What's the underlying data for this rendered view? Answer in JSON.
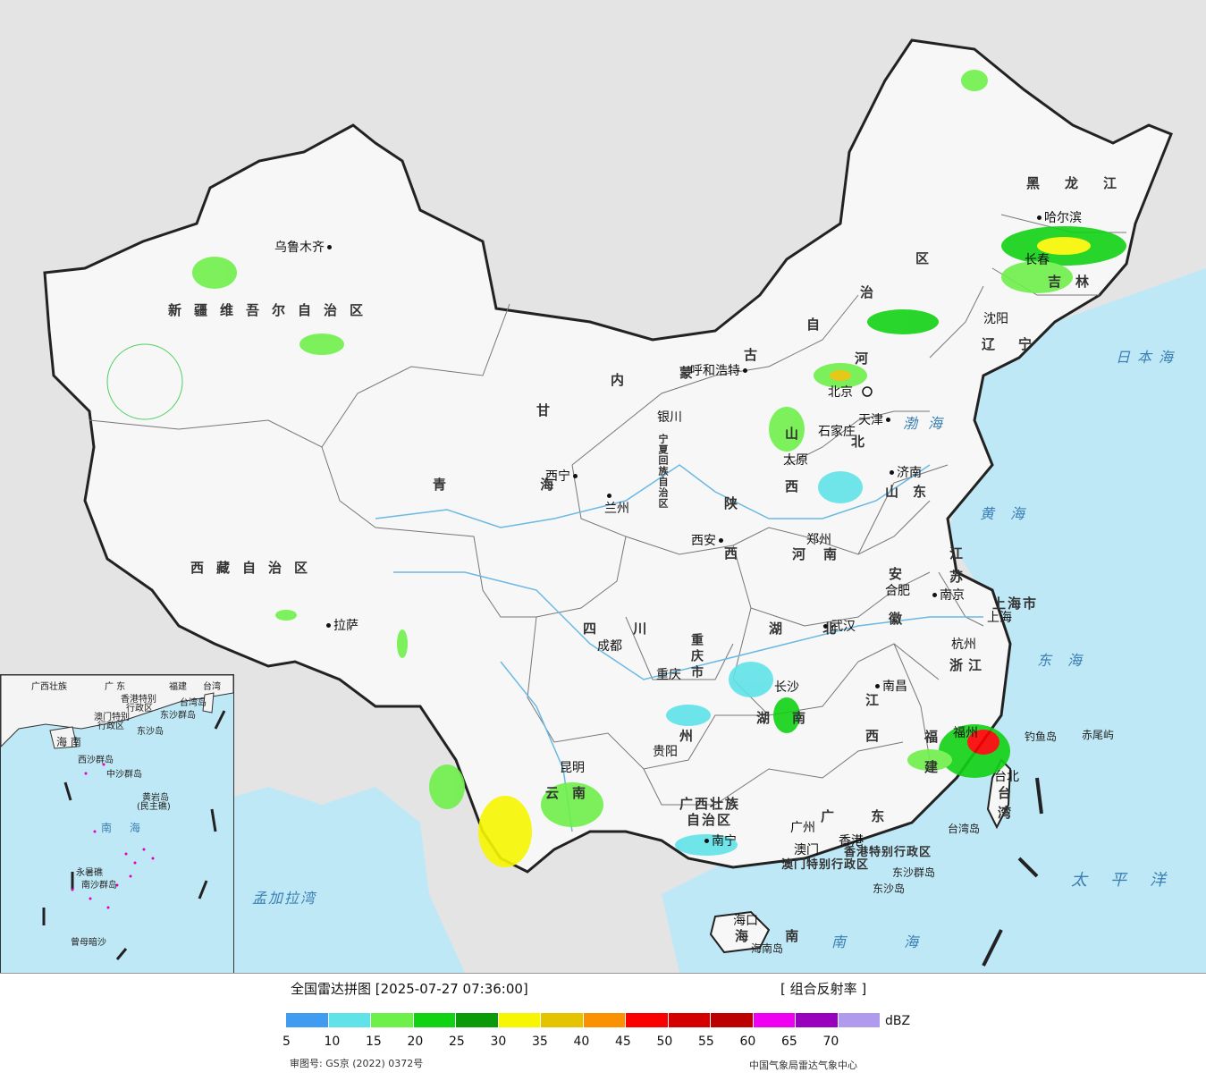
{
  "map": {
    "provinces": [
      {
        "id": "xinjiang",
        "label": "新疆维吾尔自治区"
      },
      {
        "id": "tibet",
        "label": "西藏自治区"
      },
      {
        "id": "qinghai",
        "label": "青 海"
      },
      {
        "id": "gansu",
        "label": "甘"
      },
      {
        "id": "inner_mongolia_1",
        "label": "内"
      },
      {
        "id": "inner_mongolia_2",
        "label": "蒙"
      },
      {
        "id": "inner_mongolia_3",
        "label": "古"
      },
      {
        "id": "inner_mongolia_4",
        "label": "自"
      },
      {
        "id": "inner_mongolia_5",
        "label": "治"
      },
      {
        "id": "inner_mongolia_6",
        "label": "区"
      },
      {
        "id": "heilongjiang",
        "label": "黑龙江"
      },
      {
        "id": "jilin",
        "label": "吉林"
      },
      {
        "id": "liaoning",
        "label": "辽宁"
      },
      {
        "id": "hebei_1",
        "label": "河"
      },
      {
        "id": "hebei_2",
        "label": "北"
      },
      {
        "id": "shanxi_1",
        "label": "山"
      },
      {
        "id": "shanxi_2",
        "label": "西"
      },
      {
        "id": "shandong",
        "label": "山东"
      },
      {
        "id": "shaanxi_1",
        "label": "陕"
      },
      {
        "id": "shaanxi_2",
        "label": "西"
      },
      {
        "id": "henan",
        "label": "河南"
      },
      {
        "id": "jiangsu_1",
        "label": "江"
      },
      {
        "id": "jiangsu_2",
        "label": "苏"
      },
      {
        "id": "anhui_1",
        "label": "安"
      },
      {
        "id": "anhui_2",
        "label": "徽"
      },
      {
        "id": "shanghai",
        "label": "上海市"
      },
      {
        "id": "zhejiang",
        "label": "浙江"
      },
      {
        "id": "hubei",
        "label": "湖 北"
      },
      {
        "id": "hunan_1",
        "label": "湖"
      },
      {
        "id": "hunan_2",
        "label": "南"
      },
      {
        "id": "jiangxi_1",
        "label": "江"
      },
      {
        "id": "jiangxi_2",
        "label": "西"
      },
      {
        "id": "fujian_1",
        "label": "福"
      },
      {
        "id": "fujian_2",
        "label": "建"
      },
      {
        "id": "sichuan",
        "label": "四 川"
      },
      {
        "id": "chongqing",
        "label": "重庆市"
      },
      {
        "id": "guizhou",
        "label": "州"
      },
      {
        "id": "yunnan_1",
        "label": "云"
      },
      {
        "id": "yunnan_2",
        "label": "南"
      },
      {
        "id": "guangxi_1",
        "label": "广西壮族"
      },
      {
        "id": "guangxi_2",
        "label": "自治区"
      },
      {
        "id": "guangdong",
        "label": "广 东"
      },
      {
        "id": "hainan",
        "label": "海 南"
      },
      {
        "id": "ningxia",
        "label": "宁夏回族自治区"
      },
      {
        "id": "taiwan_1",
        "label": "台"
      },
      {
        "id": "taiwan_2",
        "label": "湾"
      },
      {
        "id": "hk",
        "label": "香港特别行政区"
      },
      {
        "id": "macau",
        "label": "澳门特别行政区"
      }
    ],
    "cities": [
      {
        "id": "urumqi",
        "label": "乌鲁木齐"
      },
      {
        "id": "lhasa",
        "label": "拉萨"
      },
      {
        "id": "xining",
        "label": "西宁"
      },
      {
        "id": "lanzhou",
        "label": "兰州"
      },
      {
        "id": "yinchuan",
        "label": "银川"
      },
      {
        "id": "hohhot",
        "label": "呼和浩特"
      },
      {
        "id": "harbin",
        "label": "哈尔滨"
      },
      {
        "id": "changchun",
        "label": "长春"
      },
      {
        "id": "shenyang",
        "label": "沈阳"
      },
      {
        "id": "beijing",
        "label": "北京"
      },
      {
        "id": "tianjin",
        "label": "天津"
      },
      {
        "id": "shijiazhuang",
        "label": "石家庄"
      },
      {
        "id": "taiyuan",
        "label": "太原"
      },
      {
        "id": "jinan",
        "label": "济南"
      },
      {
        "id": "zhengzhou",
        "label": "郑州"
      },
      {
        "id": "xian",
        "label": "西安"
      },
      {
        "id": "hefei",
        "label": "合肥"
      },
      {
        "id": "nanjing",
        "label": "南京"
      },
      {
        "id": "shanghai_city",
        "label": "上海"
      },
      {
        "id": "hangzhou",
        "label": "杭州"
      },
      {
        "id": "wuhan",
        "label": "武汉"
      },
      {
        "id": "changsha",
        "label": "长沙"
      },
      {
        "id": "nanchang",
        "label": "南昌"
      },
      {
        "id": "fuzhou",
        "label": "福州"
      },
      {
        "id": "chengdu",
        "label": "成都"
      },
      {
        "id": "chongqing_city",
        "label": "重庆"
      },
      {
        "id": "guiyang",
        "label": "贵阳"
      },
      {
        "id": "kunming",
        "label": "昆明"
      },
      {
        "id": "nanning",
        "label": "南宁"
      },
      {
        "id": "guangzhou",
        "label": "广州"
      },
      {
        "id": "hongkong",
        "label": "香港"
      },
      {
        "id": "macao",
        "label": "澳门"
      },
      {
        "id": "haikou",
        "label": "海口"
      },
      {
        "id": "taipei",
        "label": "台北"
      }
    ],
    "seas": [
      {
        "id": "bohai",
        "label": "渤海"
      },
      {
        "id": "yellow_sea",
        "label": "黄海"
      },
      {
        "id": "east_sea",
        "label": "东海"
      },
      {
        "id": "south_sea",
        "label": "南 海"
      },
      {
        "id": "japan_sea",
        "label": "日本海"
      },
      {
        "id": "pacific",
        "label": "太平洋"
      },
      {
        "id": "bengal",
        "label": "孟加拉湾"
      }
    ],
    "islands": [
      {
        "id": "diaoyu",
        "label": "钓鱼岛"
      },
      {
        "id": "chiwei",
        "label": "赤尾屿"
      },
      {
        "id": "taiwan_island",
        "label": "台湾岛"
      },
      {
        "id": "dongsha",
        "label": "东沙群岛"
      },
      {
        "id": "dongsha2",
        "label": "东沙岛"
      },
      {
        "id": "hainan_island",
        "label": "海南岛"
      }
    ]
  },
  "inset": {
    "labels": [
      {
        "id": "gx",
        "label": "广西壮族"
      },
      {
        "id": "gd",
        "label": "广 东"
      },
      {
        "id": "fj",
        "label": "福建"
      },
      {
        "id": "tw",
        "label": "台湾"
      },
      {
        "id": "hk",
        "label": "香港特别"
      },
      {
        "id": "hk2",
        "label": "行政区"
      },
      {
        "id": "mo",
        "label": "澳门特别"
      },
      {
        "id": "mo2",
        "label": "行政区"
      },
      {
        "id": "tw_island",
        "label": "台湾岛"
      },
      {
        "id": "dongsha",
        "label": "东沙群岛"
      },
      {
        "id": "dongsha2",
        "label": "东沙岛"
      },
      {
        "id": "hainan",
        "label": "海 南"
      },
      {
        "id": "xisha",
        "label": "西沙群岛"
      },
      {
        "id": "zhongsha",
        "label": "中沙群岛"
      },
      {
        "id": "huangyan",
        "label": "黄岩岛"
      },
      {
        "id": "huangyan2",
        "label": "(民主礁)"
      },
      {
        "id": "nansha",
        "label": "南沙群岛"
      },
      {
        "id": "yongshu",
        "label": "永暑礁"
      },
      {
        "id": "zengmu",
        "label": "曾母暗沙"
      },
      {
        "id": "nanhai",
        "label": "南 海"
      }
    ]
  },
  "legend": {
    "title": "全国雷达拼图 [2025-07-27 07:36:00]",
    "product": "[ 组合反射率 ]",
    "unit": "dBZ",
    "approval": "审图号: GS京 (2022) 0372号",
    "source": "中国气象局雷达气象中心",
    "colors": [
      "#3f9cf0",
      "#5fe2e8",
      "#6ef04a",
      "#12d214",
      "#0a9a0a",
      "#f6f600",
      "#e4c400",
      "#fb9000",
      "#fb0000",
      "#d40000",
      "#bc0000",
      "#f000f0",
      "#9800be",
      "#b09aee"
    ],
    "ticks": [
      "5",
      "10",
      "15",
      "20",
      "25",
      "30",
      "35",
      "40",
      "45",
      "50",
      "55",
      "60",
      "65",
      "70"
    ]
  }
}
